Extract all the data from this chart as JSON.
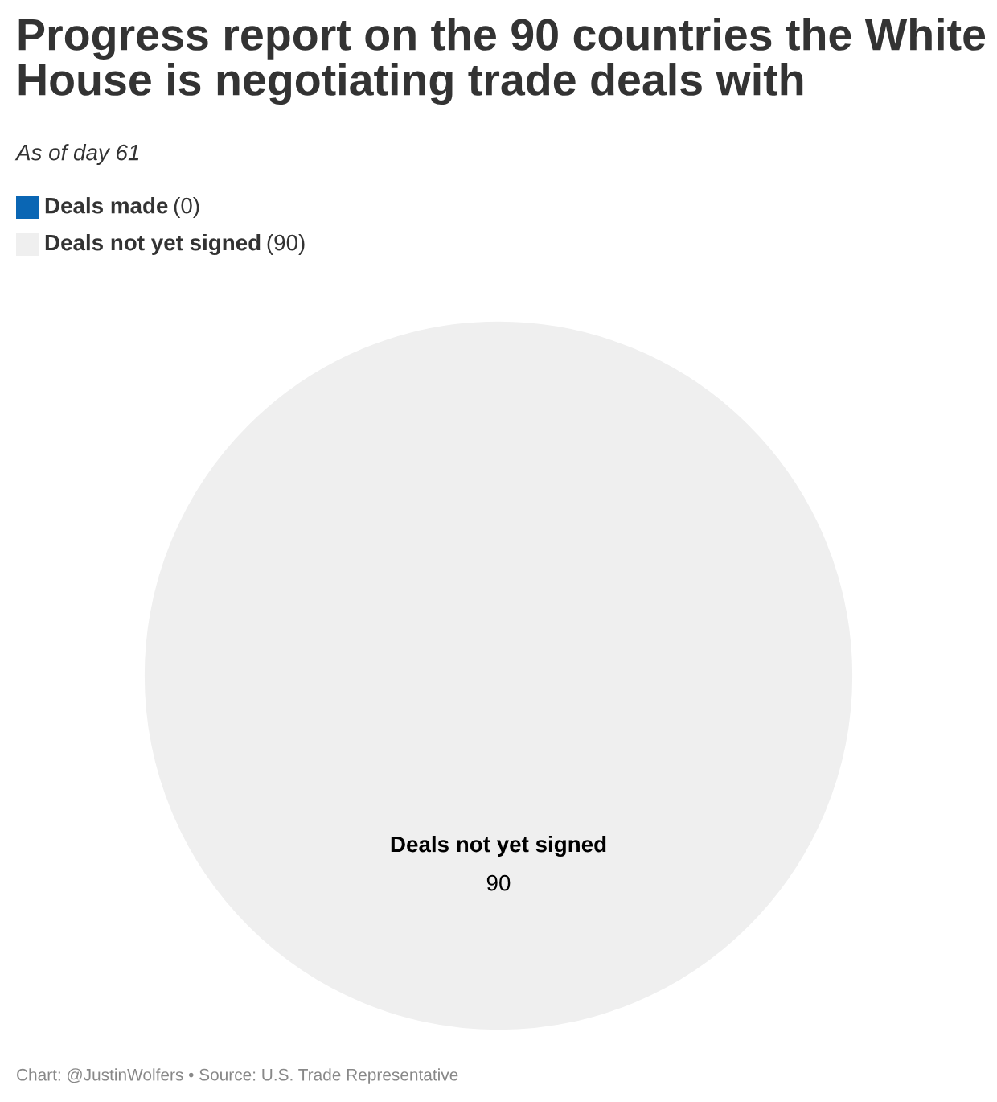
{
  "chart_data": {
    "type": "pie",
    "title": "Progress report on the 90 countries the White House is negotiating trade deals with",
    "subtitle": "As of day 61",
    "categories": [
      "Deals made",
      "Deals not yet signed"
    ],
    "values": [
      0,
      90
    ],
    "value_labels": [
      "(0)",
      "(90)"
    ],
    "colors": [
      "#0a66b4",
      "#efefef"
    ],
    "legend": "top left",
    "annotations": [
      {
        "text": "90",
        "x": "Deals not yet signed"
      },
      "Chart: @JustinWolfers • Source: U.S. Trade Representative"
    ]
  }
}
